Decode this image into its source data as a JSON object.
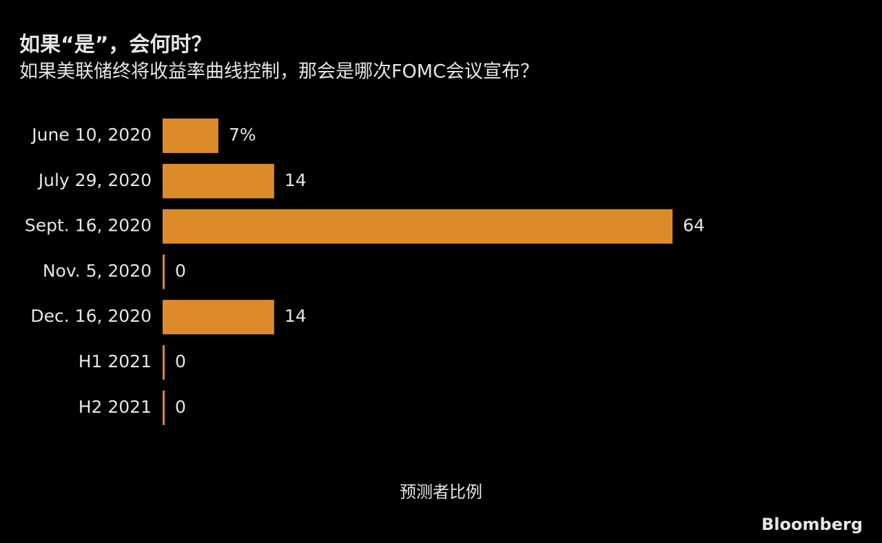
{
  "chart_data": {
    "type": "bar",
    "orientation": "horizontal",
    "title": "如果“是”，会何时？",
    "subtitle": "如果美联储终将收益率曲线控制，那会是哪次FOMC会议宣布？",
    "categories": [
      "June 10, 2020",
      "July 29, 2020",
      "Sept. 16, 2020",
      "Nov. 5, 2020",
      "Dec. 16, 2020",
      "H1 2021",
      "H2 2021"
    ],
    "values": [
      7,
      14,
      64,
      0,
      14,
      0,
      0
    ],
    "value_labels": [
      "7%",
      "14",
      "64",
      "0",
      "14",
      "0",
      "0"
    ],
    "color": "#dd8b2a",
    "xlabel": "预测者比例",
    "source": "Bloomberg"
  }
}
